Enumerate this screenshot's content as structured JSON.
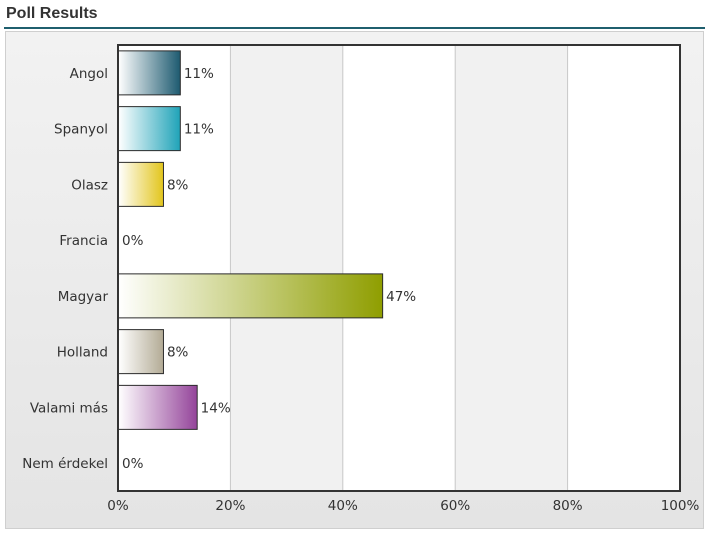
{
  "header": {
    "title": "Poll Results"
  },
  "chart_data": {
    "type": "bar",
    "orientation": "horizontal",
    "title": "",
    "xlabel": "",
    "ylabel": "",
    "xlim": [
      0,
      100
    ],
    "grid": true,
    "categories": [
      "Angol",
      "Spanyol",
      "Olasz",
      "Francia",
      "Magyar",
      "Holland",
      "Valami más",
      "Nem érdekel"
    ],
    "values": [
      11,
      11,
      8,
      0,
      47,
      8,
      14,
      0
    ],
    "value_labels": [
      "11%",
      "11%",
      "8%",
      "0%",
      "47%",
      "8%",
      "14%",
      "0%"
    ],
    "x_ticks": [
      "0%",
      "20%",
      "40%",
      "60%",
      "80%",
      "100%"
    ],
    "bar_colors": [
      "#1d5a70",
      "#1fa3b8",
      "#e2c51c",
      "#8a8a8a",
      "#8f9e00",
      "#b3ab95",
      "#94449a",
      "#8a8a8a"
    ]
  }
}
